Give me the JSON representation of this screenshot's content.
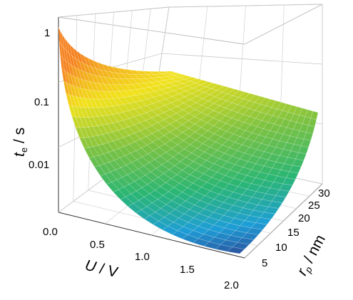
{
  "chart_data": {
    "type": "surface3d",
    "title": "",
    "x_axis": {
      "label_main": "U",
      "label_unit": "V",
      "label": "U / V",
      "range": [
        0,
        2
      ],
      "ticks": [
        "0.0",
        "0.5",
        "1.0",
        "1.5",
        "2.0"
      ],
      "tick_values": [
        0,
        0.5,
        1,
        1.5,
        2
      ]
    },
    "y_axis": {
      "label_main": "r",
      "label_sub": "p",
      "label_unit": "nm",
      "label": "r_p / nm",
      "range": [
        0,
        30
      ],
      "ticks": [
        "5",
        "10",
        "15",
        "20",
        "25",
        "30"
      ],
      "tick_values": [
        5,
        10,
        15,
        20,
        25,
        30
      ]
    },
    "z_axis": {
      "label_main": "t",
      "label_sub": "e",
      "label_unit": "s",
      "label": "t_e / s",
      "scale": "log",
      "range": [
        0.001,
        1
      ],
      "ticks": [
        "1",
        "0.1",
        "0.01"
      ],
      "tick_values": [
        1,
        0.1,
        0.01
      ]
    },
    "grid": true,
    "colormap": [
      "#2c3e8f",
      "#1e9ed6",
      "#2bb673",
      "#7cc242",
      "#f2e21c",
      "#f58220"
    ],
    "surface_corners": [
      {
        "U": 0,
        "r_p": 0,
        "t_e": 1
      },
      {
        "U": 2,
        "r_p": 0,
        "t_e": 0.0013
      },
      {
        "U": 2,
        "r_p": 30,
        "t_e": 0.06
      },
      {
        "U": 0,
        "r_p": 30,
        "t_e": 0.2
      }
    ]
  }
}
